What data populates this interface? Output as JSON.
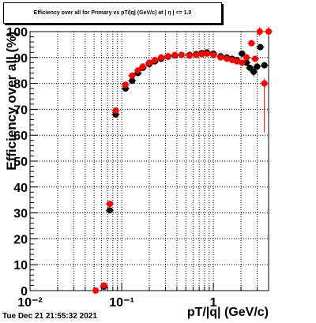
{
  "chart_data": {
    "type": "scatter",
    "title": "Efficiency over all for Primary vs pT/|q| (GeV/c) at | η | <= 1.0",
    "xlabel": "pT/|q| (GeV/c)",
    "ylabel": "Efficiency over all (%)",
    "xscale": "log",
    "xlim": [
      0.01,
      4.0
    ],
    "ylim": [
      0,
      100
    ],
    "grid": true,
    "x_tick_labels": [
      "10⁻²",
      "10⁻¹",
      "1"
    ],
    "y_ticks": [
      0,
      10,
      20,
      30,
      40,
      50,
      60,
      70,
      80,
      90,
      100
    ],
    "series": [
      {
        "color": "#000000",
        "points": [
          [
            0.064,
            1.5
          ],
          [
            0.074,
            31
          ],
          [
            0.086,
            68
          ],
          [
            0.11,
            78
          ],
          [
            0.13,
            81
          ],
          [
            0.15,
            84
          ],
          [
            0.17,
            86
          ],
          [
            0.2,
            87.5
          ],
          [
            0.23,
            88.5
          ],
          [
            0.27,
            89.5
          ],
          [
            0.32,
            90.3
          ],
          [
            0.38,
            90.8
          ],
          [
            0.45,
            91
          ],
          [
            0.55,
            91
          ],
          [
            0.65,
            91.3
          ],
          [
            0.75,
            91.7
          ],
          [
            0.85,
            92
          ],
          [
            1.0,
            91.5
          ],
          [
            1.2,
            90.5
          ],
          [
            1.4,
            90
          ],
          [
            1.6,
            89.5
          ],
          [
            1.8,
            89
          ],
          [
            2.05,
            91.5
          ],
          [
            2.3,
            88
          ],
          [
            2.5,
            86
          ],
          [
            2.75,
            84.5
          ],
          [
            3.0,
            86.5
          ],
          [
            3.25,
            94
          ],
          [
            3.6,
            87
          ]
        ]
      },
      {
        "color": "#ff0000",
        "points": [
          [
            0.052,
            0
          ],
          [
            0.064,
            2
          ],
          [
            0.074,
            33.5
          ],
          [
            0.086,
            69.5
          ],
          [
            0.11,
            79.5
          ],
          [
            0.13,
            83
          ],
          [
            0.15,
            85
          ],
          [
            0.17,
            86.5
          ],
          [
            0.2,
            88
          ],
          [
            0.23,
            89
          ],
          [
            0.27,
            90
          ],
          [
            0.32,
            90.5
          ],
          [
            0.38,
            91
          ],
          [
            0.45,
            91
          ],
          [
            0.55,
            90.7
          ],
          [
            0.65,
            91
          ],
          [
            0.75,
            91.3
          ],
          [
            0.85,
            91.5
          ],
          [
            1.0,
            91
          ],
          [
            1.2,
            90
          ],
          [
            1.4,
            89.5
          ],
          [
            1.6,
            89
          ],
          [
            1.8,
            88.5
          ],
          [
            2.05,
            88
          ],
          [
            2.3,
            90
          ],
          [
            2.6,
            95.5
          ],
          [
            2.85,
            89.5
          ],
          [
            3.2,
            100
          ],
          [
            3.6,
            80
          ],
          [
            4.0,
            100
          ]
        ]
      }
    ]
  },
  "footer": {
    "date": "Tue Dec 21 21:55:32 2021"
  }
}
